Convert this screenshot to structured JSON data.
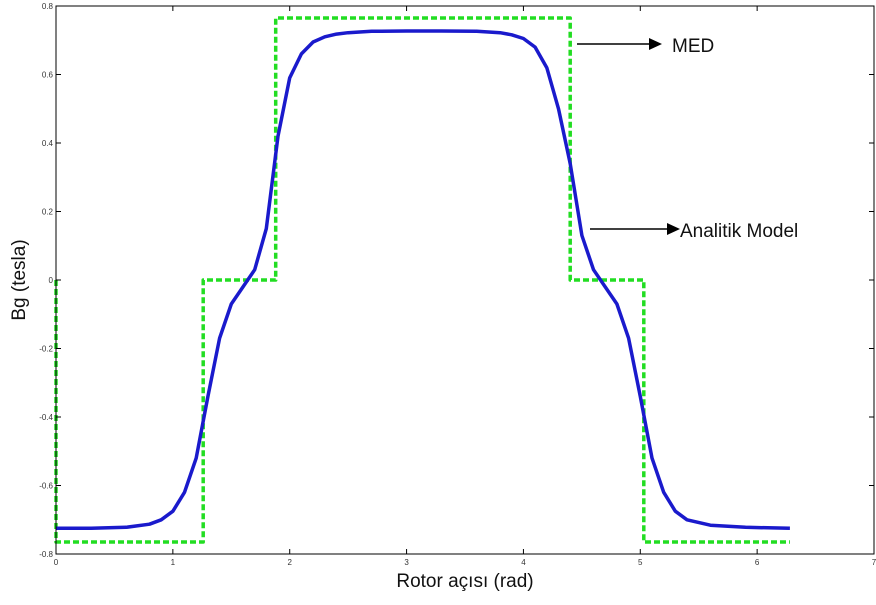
{
  "chart_data": {
    "type": "line",
    "title": "",
    "xlabel": "Rotor açısı (rad)",
    "ylabel": "Bg (tesla)",
    "xlim": [
      0,
      7
    ],
    "ylim": [
      -0.8,
      0.8
    ],
    "xticks": [
      {
        "value": 0,
        "label": "0"
      },
      {
        "value": 1,
        "label": "1"
      },
      {
        "value": 2,
        "label": "2"
      },
      {
        "value": 3,
        "label": "3"
      },
      {
        "value": 4,
        "label": "4"
      },
      {
        "value": 5,
        "label": "5"
      },
      {
        "value": 6,
        "label": "6"
      },
      {
        "value": 7,
        "label": "7"
      }
    ],
    "yticks": [
      {
        "value": -0.8,
        "label": "-0.8"
      },
      {
        "value": -0.6,
        "label": "-0.6"
      },
      {
        "value": -0.4,
        "label": "-0.4"
      },
      {
        "value": -0.2,
        "label": "-0.2"
      },
      {
        "value": 0,
        "label": "0"
      },
      {
        "value": 0.2,
        "label": "0.2"
      },
      {
        "value": 0.4,
        "label": "0.4"
      },
      {
        "value": 0.6,
        "label": "0.6"
      },
      {
        "value": 0.8,
        "label": "0.8"
      }
    ],
    "grid": false,
    "legend": "none",
    "series": [
      {
        "name": "MED",
        "color": "#22dd22",
        "style": "dashed",
        "x": [
          0,
          0,
          1.26,
          1.26,
          1.88,
          1.88,
          4.4,
          4.4,
          5.03,
          5.03,
          6.28
        ],
        "y": [
          0.0,
          -0.765,
          -0.765,
          0.0,
          0.0,
          0.765,
          0.765,
          0.0,
          0.0,
          -0.765,
          -0.765
        ]
      },
      {
        "name": "Analitik Model",
        "color": "#1a1acc",
        "style": "solid",
        "x": [
          0.0,
          0.3,
          0.6,
          0.8,
          0.9,
          1.0,
          1.1,
          1.2,
          1.3,
          1.4,
          1.5,
          1.6,
          1.7,
          1.8,
          1.9,
          2.0,
          2.1,
          2.2,
          2.3,
          2.4,
          2.5,
          2.7,
          3.0,
          3.3,
          3.6,
          3.8,
          3.9,
          4.0,
          4.1,
          4.2,
          4.3,
          4.4,
          4.5,
          4.6,
          4.7,
          4.8,
          4.9,
          5.0,
          5.1,
          5.2,
          5.3,
          5.4,
          5.6,
          5.9,
          6.28
        ],
        "y": [
          -0.725,
          -0.725,
          -0.722,
          -0.713,
          -0.7,
          -0.675,
          -0.62,
          -0.52,
          -0.34,
          -0.17,
          -0.07,
          -0.02,
          0.03,
          0.15,
          0.42,
          0.59,
          0.66,
          0.695,
          0.71,
          0.718,
          0.722,
          0.726,
          0.727,
          0.727,
          0.726,
          0.722,
          0.716,
          0.705,
          0.68,
          0.62,
          0.5,
          0.34,
          0.13,
          0.03,
          -0.02,
          -0.07,
          -0.17,
          -0.34,
          -0.52,
          -0.62,
          -0.675,
          -0.7,
          -0.716,
          -0.722,
          -0.725
        ]
      }
    ],
    "annotations": [
      {
        "text": "MED",
        "target": "MED"
      },
      {
        "text": "Analitik Model",
        "target": "Analitik Model"
      }
    ]
  }
}
